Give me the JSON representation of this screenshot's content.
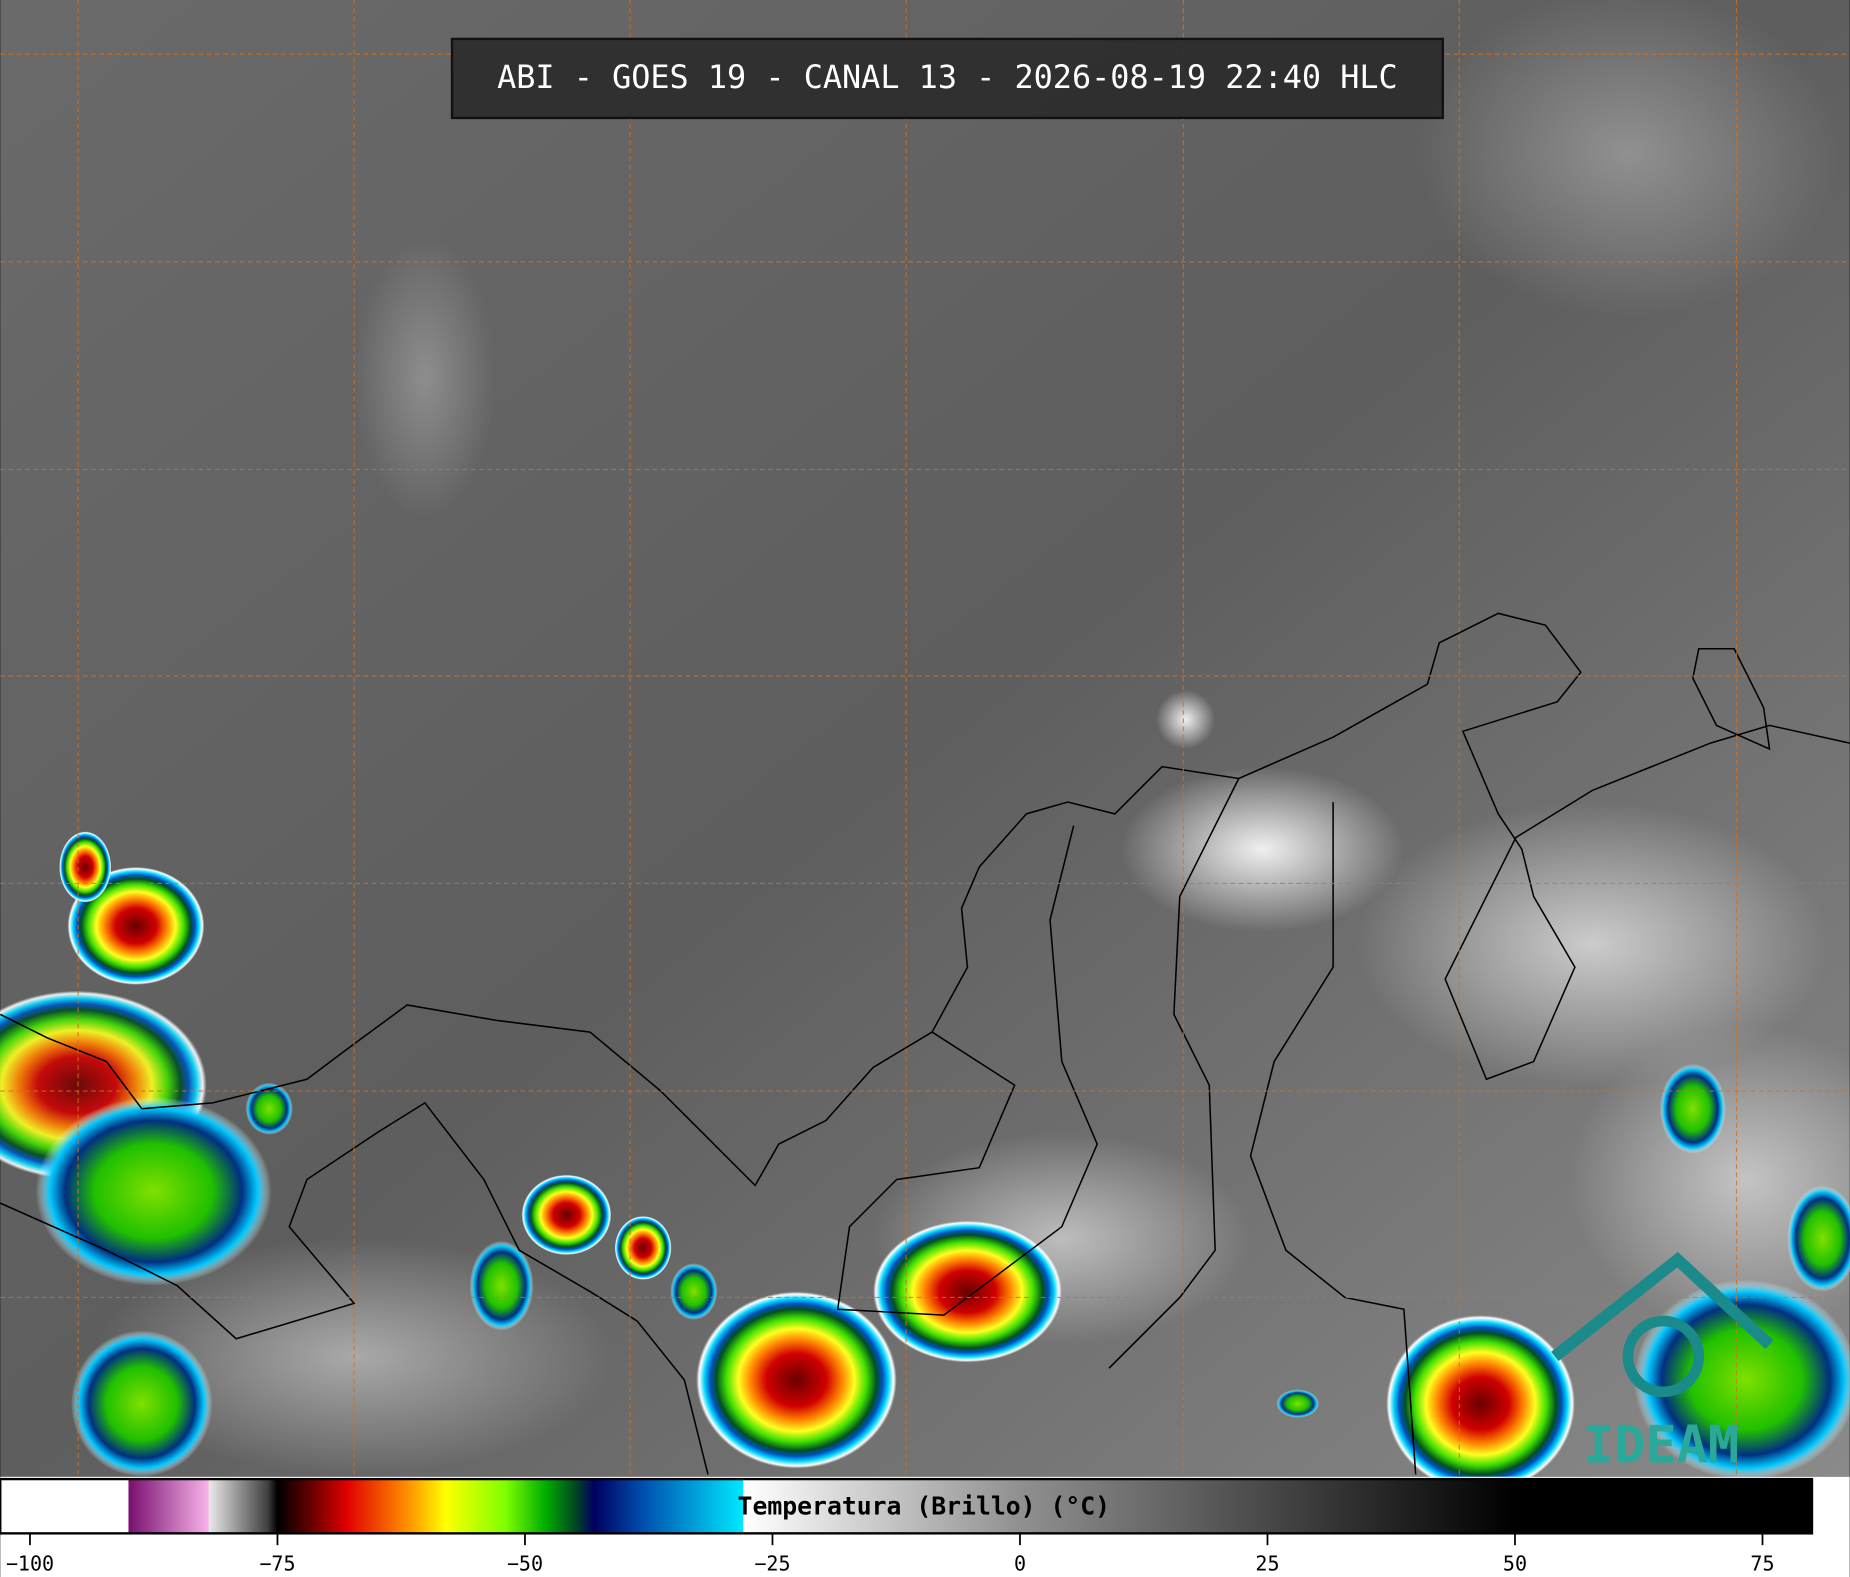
{
  "header": {
    "title": "ABI - GOES 19 - CANAL 13 - 2026-08-19 22:40 HLC"
  },
  "logo": {
    "text": "IDEAM"
  },
  "colorbar": {
    "label": "Temperatura (Brillo) (°C)",
    "range": [
      -103,
      80
    ],
    "ticks": [
      {
        "value": -100,
        "label": "−100"
      },
      {
        "value": -75,
        "label": "−75"
      },
      {
        "value": -50,
        "label": "−50"
      },
      {
        "value": -25,
        "label": "−25"
      },
      0,
      25,
      50,
      75
    ],
    "colormap": [
      {
        "value": -103,
        "color": "#ffffff"
      },
      {
        "value": -90.1,
        "color": "#ffffff"
      },
      {
        "value": -90,
        "color": "#7a1070"
      },
      {
        "value": -82,
        "color": "#f7b2e8"
      },
      {
        "value": -81.9,
        "color": "#e8e8e8"
      },
      {
        "value": -76,
        "color": "#404040"
      },
      {
        "value": -75,
        "color": "#000000"
      },
      {
        "value": -72,
        "color": "#5a0000"
      },
      {
        "value": -68,
        "color": "#e00000"
      },
      {
        "value": -62,
        "color": "#ff8c00"
      },
      {
        "value": -58,
        "color": "#ffff00"
      },
      {
        "value": -52,
        "color": "#80ff00"
      },
      {
        "value": -48,
        "color": "#00b000"
      },
      {
        "value": -45,
        "color": "#004a20"
      },
      {
        "value": -43,
        "color": "#000060"
      },
      {
        "value": -38,
        "color": "#0050b0"
      },
      {
        "value": -28,
        "color": "#00e8ff"
      },
      {
        "value": -27.9,
        "color": "#ffffff"
      },
      {
        "value": 0,
        "color": "#909090"
      },
      {
        "value": 50,
        "color": "#000000"
      },
      {
        "value": 80,
        "color": "#000000"
      }
    ]
  }
}
